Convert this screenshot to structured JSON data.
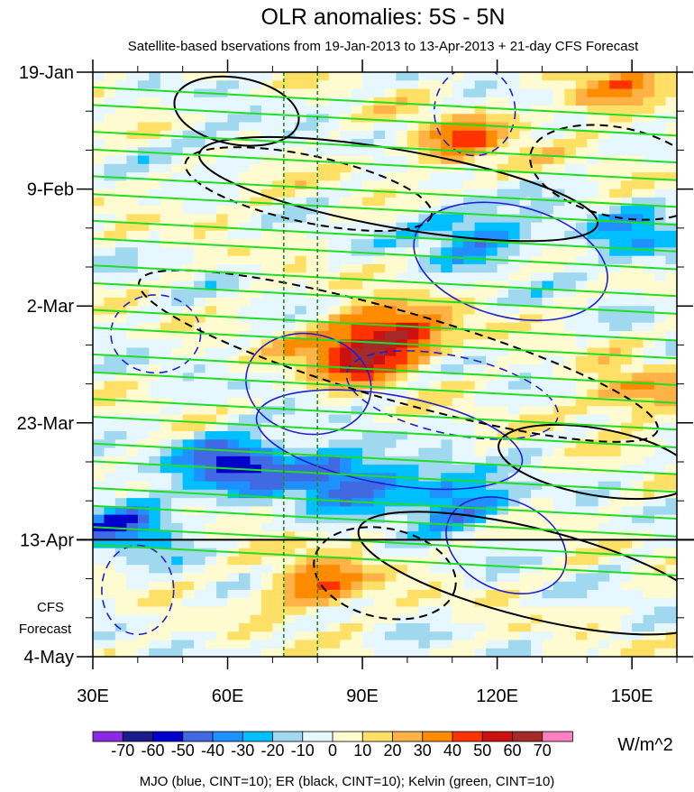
{
  "chart_data": {
    "type": "heatmap",
    "title": "OLR anomalies: 5S - 5N",
    "subtitle": "Satellite-based bservations from 19-Jan-2013 to 13-Apr-2013 + 21-day CFS Forecast",
    "x_axis": {
      "range": [
        30,
        160
      ],
      "ticks": [
        30,
        60,
        90,
        120,
        150
      ],
      "tick_labels": [
        "30E",
        "60E",
        "90E",
        "120E",
        "150E"
      ],
      "minor_step": 10
    },
    "y_axis": {
      "range_days": [
        0,
        105
      ],
      "ticks_days": [
        0,
        21,
        42,
        63,
        84,
        105
      ],
      "tick_labels": [
        "19-Jan",
        "9-Feb",
        "2-Mar",
        "23-Mar",
        "13-Apr",
        "4-May"
      ],
      "minor_step_days": 7,
      "forecast_start_day": 84,
      "forecast_label": [
        "CFS",
        "Forecast"
      ]
    },
    "colorbar": {
      "levels": [
        -70,
        -60,
        -50,
        -40,
        -30,
        -20,
        -10,
        0,
        10,
        20,
        30,
        40,
        50,
        60,
        70
      ],
      "labels": [
        "-70",
        "-60",
        "-50",
        "-40",
        "-30",
        "-20",
        "-10",
        "0",
        "10",
        "20",
        "30",
        "40",
        "50",
        "60",
        "70"
      ],
      "colors": [
        "#8a2be2",
        "#1c1c8c",
        "#0000cd",
        "#4169e1",
        "#1e90ff",
        "#00bfff",
        "#a0d8f0",
        "#e6f7ff",
        "#fffbd0",
        "#ffe066",
        "#ffb347",
        "#ff8c00",
        "#ff3300",
        "#cc1111",
        "#a52a2a",
        "#ff80c0"
      ],
      "unit": "W/m^2"
    },
    "reference_lines_lon": [
      72.5,
      80
    ],
    "contour_cint": 10,
    "legend": "MJO (blue, CINT=10); ER (black, CINT=10); Kelvin (green, CINT=10)",
    "series": [
      {
        "name": "MJO",
        "color": "#2020d0"
      },
      {
        "name": "ER",
        "color": "#000000"
      },
      {
        "name": "Kelvin",
        "color": "#22dd22"
      }
    ],
    "anomaly_features": [
      {
        "sign": "positive",
        "lon": 97,
        "day": 47,
        "peak": 55
      },
      {
        "sign": "positive",
        "lon": 87,
        "day": 51,
        "peak": 45
      },
      {
        "sign": "positive",
        "lon": 80,
        "day": 92,
        "peak": 40
      },
      {
        "sign": "positive",
        "lon": 62,
        "day": 18,
        "peak": 35
      },
      {
        "sign": "positive",
        "lon": 112,
        "day": 13,
        "peak": 35
      },
      {
        "sign": "positive",
        "lon": 145,
        "day": 4,
        "peak": 30
      },
      {
        "sign": "positive",
        "lon": 150,
        "day": 58,
        "peak": 30
      },
      {
        "sign": "negative",
        "lon": 62,
        "day": 70,
        "peak": -60
      },
      {
        "sign": "negative",
        "lon": 86,
        "day": 73,
        "peak": -55
      },
      {
        "sign": "negative",
        "lon": 110,
        "day": 77,
        "peak": -45
      },
      {
        "sign": "negative",
        "lon": 38,
        "day": 81,
        "peak": -45
      },
      {
        "sign": "negative",
        "lon": 60,
        "day": 16,
        "peak": -40
      },
      {
        "sign": "negative",
        "lon": 115,
        "day": 29,
        "peak": -40
      },
      {
        "sign": "negative",
        "lon": 150,
        "day": 30,
        "peak": -30
      }
    ],
    "wave_contours": {
      "MJO": [
        {
          "lon": 78,
          "day": 56,
          "rx": 14,
          "ry": 9,
          "tilt": 10,
          "dashed": false
        },
        {
          "lon": 96,
          "day": 66,
          "rx": 30,
          "ry": 8,
          "tilt": 10,
          "dashed": false
        },
        {
          "lon": 123,
          "day": 34,
          "rx": 22,
          "ry": 10,
          "tilt": 14,
          "dashed": false
        },
        {
          "lon": 122,
          "day": 85,
          "rx": 14,
          "ry": 8,
          "tilt": 25,
          "dashed": false
        },
        {
          "lon": 110,
          "day": 58,
          "rx": 24,
          "ry": 7,
          "tilt": 12,
          "dashed": true
        },
        {
          "lon": 40,
          "day": 93,
          "rx": 8,
          "ry": 8,
          "tilt": 0,
          "dashed": true
        },
        {
          "lon": 115,
          "day": 7,
          "rx": 9,
          "ry": 8,
          "tilt": 0,
          "dashed": true
        },
        {
          "lon": 44,
          "day": 47,
          "rx": 10,
          "ry": 7,
          "tilt": 0,
          "dashed": true
        }
      ],
      "ER": [
        {
          "lon": 98,
          "day": 51,
          "rx": 60,
          "ry": 8,
          "tilt": 16,
          "dashed": true
        },
        {
          "lon": 98,
          "day": 21,
          "rx": 45,
          "ry": 7,
          "tilt": 10,
          "dashed": false
        },
        {
          "lon": 62,
          "day": 7,
          "rx": 14,
          "ry": 6,
          "tilt": 10,
          "dashed": false
        },
        {
          "lon": 95,
          "day": 90,
          "rx": 16,
          "ry": 8,
          "tilt": 12,
          "dashed": true
        },
        {
          "lon": 128,
          "day": 90,
          "rx": 40,
          "ry": 8,
          "tilt": 14,
          "dashed": false
        },
        {
          "lon": 142,
          "day": 70,
          "rx": 22,
          "ry": 6,
          "tilt": 10,
          "dashed": false
        },
        {
          "lon": 147,
          "day": 18,
          "rx": 20,
          "ry": 8,
          "tilt": 12,
          "dashed": true
        },
        {
          "lon": 78,
          "day": 21,
          "rx": 28,
          "ry": 6,
          "tilt": 12,
          "dashed": true
        }
      ],
      "Kelvin_day_offsets": [
        4,
        12,
        20,
        28,
        36,
        44,
        52,
        60,
        68,
        76,
        83
      ]
    }
  }
}
